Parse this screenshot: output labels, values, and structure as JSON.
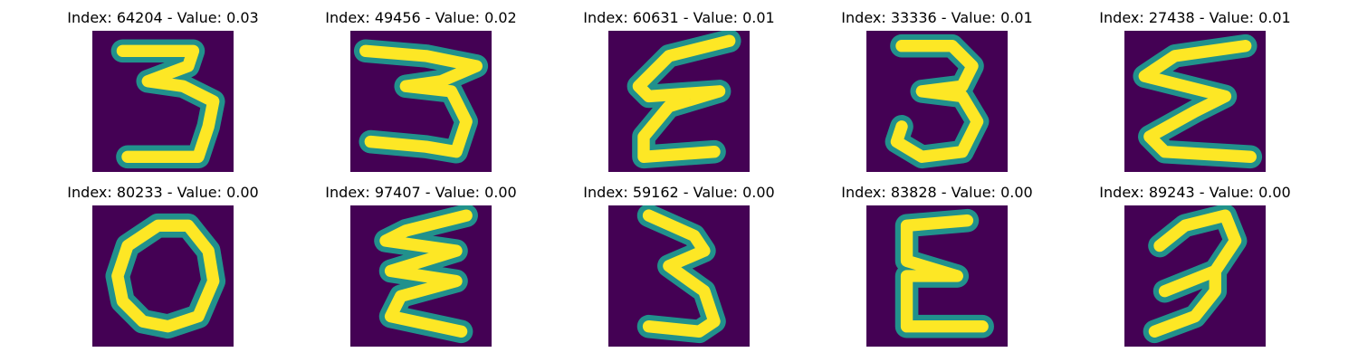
{
  "colors": {
    "background": "#440154",
    "stroke_edge": "#21918c",
    "stroke_core": "#fde725"
  },
  "panels": [
    {
      "title": "Index: 64204 - Value: 0.03",
      "digit_icon": "digit-three-icon"
    },
    {
      "title": "Index: 49456 - Value: 0.02",
      "digit_icon": "digit-three-icon"
    },
    {
      "title": "Index: 60631 - Value: 0.01",
      "digit_icon": "sigma-shape-icon"
    },
    {
      "title": "Index: 33336 - Value: 0.01",
      "digit_icon": "digit-three-icon"
    },
    {
      "title": "Index: 27438 - Value: 0.01",
      "digit_icon": "sigma-shape-icon"
    },
    {
      "title": "Index: 80233 - Value: 0.00",
      "digit_icon": "digit-zero-icon"
    },
    {
      "title": "Index: 97407 - Value: 0.00",
      "digit_icon": "sigma-shape-icon"
    },
    {
      "title": "Index: 59162 - Value: 0.00",
      "digit_icon": "digit-three-icon"
    },
    {
      "title": "Index: 83828 - Value: 0.00",
      "digit_icon": "letter-e-icon"
    },
    {
      "title": "Index: 89243 - Value: 0.00",
      "digit_icon": "digit-three-icon"
    }
  ]
}
